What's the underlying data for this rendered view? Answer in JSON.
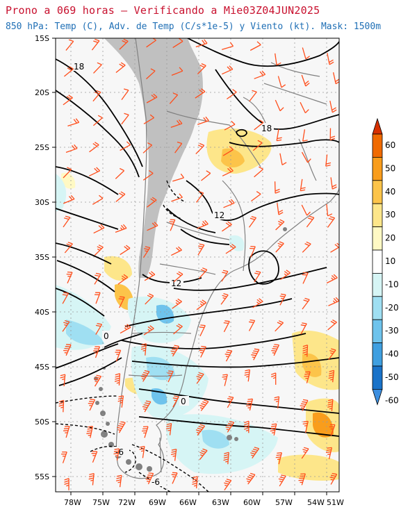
{
  "title": "Prono a 069 horas — Verificando a Mie03Z04JUN2025",
  "subtitle": "850 hPa: Temp (C), Adv. de Temp (C/s*1e-5) y Viento (kt). Mask: 1500m",
  "map": {
    "lat_labels": [
      "15S",
      "20S",
      "25S",
      "30S",
      "35S",
      "40S",
      "45S",
      "50S",
      "55S"
    ],
    "lon_labels": [
      "78W",
      "75W",
      "72W",
      "69W",
      "66W",
      "63W",
      "60W",
      "57W",
      "54W",
      "51W"
    ],
    "contour_labels": [
      "18",
      "18",
      "12",
      "12",
      "0",
      "0",
      "-6",
      "-6"
    ]
  },
  "colorbar": {
    "labels": [
      "60",
      "50",
      "40",
      "30",
      "20",
      "10",
      "-10",
      "-20",
      "-30",
      "-40",
      "-50",
      "-60"
    ],
    "colors": [
      "#d73000",
      "#f06a00",
      "#f99d1c",
      "#fcc44a",
      "#fde68a",
      "#fff9c4",
      "#ffffff",
      "#d6f5f5",
      "#9fdff2",
      "#6ec3ec",
      "#3f9fe0",
      "#1a73c9",
      "#3d8fe0"
    ]
  },
  "colors": {
    "title": "#c8102e",
    "subtitle": "#1f6fb5",
    "wind_barbs": "#ff4d1a",
    "terrain_mask": "#c0c0c0",
    "coast": "#808080"
  }
}
